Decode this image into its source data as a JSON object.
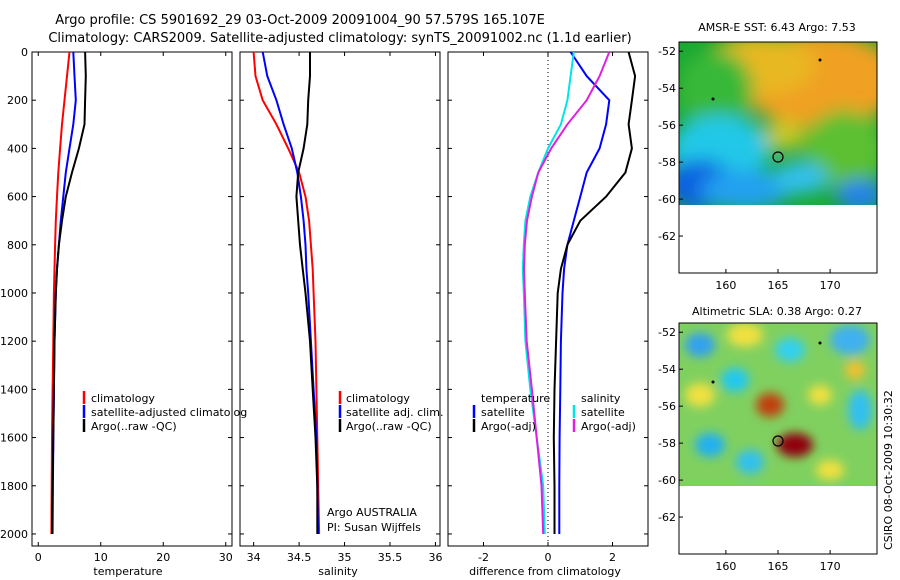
{
  "title_line1": "Argo profile: CS 5901692_29 03-Oct-2009 20091004_90 57.579S 165.107E",
  "title_line2": "Climatology: CARS2009. Satellite-adjusted climatology: synTS_20091002.nc (1.1d earlier)",
  "map1_title": "AMSR-E SST: 6.43 Argo: 7.53",
  "map2_title": "Altimetric SLA: 0.38 Argo: 0.27",
  "side_credit": "CSIRO 08-Oct-2009 10:30:32",
  "argo_info": [
    "Argo AUSTRALIA",
    "PI: Susan Wijffels"
  ],
  "colors": {
    "climatology": "#ff0000",
    "satellite": "#0000ff",
    "argo": "#000000",
    "sal_satellite": "#00e5e5",
    "sal_argo": "#e020e0"
  },
  "chart_data": [
    {
      "type": "line",
      "xlabel": "temperature",
      "xlim": [
        -1,
        31
      ],
      "ylim": [
        2050,
        0
      ],
      "xticks": [
        0,
        10,
        20,
        30
      ],
      "yticks": [
        0,
        200,
        400,
        600,
        800,
        1000,
        1200,
        1400,
        1600,
        1800,
        2000
      ],
      "legend": [
        "climatology",
        "satellite-adjusted climatolog",
        "Argo(..raw -QC)"
      ],
      "series": [
        {
          "name": "climatology",
          "color": "#ff0000",
          "x": [
            5.0,
            4.6,
            4.2,
            3.8,
            3.5,
            3.2,
            3.0,
            2.8,
            2.7,
            2.6,
            2.5,
            2.4,
            2.3,
            2.2,
            2.15,
            2.1
          ],
          "y": [
            0,
            100,
            200,
            300,
            400,
            500,
            600,
            700,
            800,
            900,
            1000,
            1200,
            1400,
            1600,
            1800,
            2000
          ]
        },
        {
          "name": "satellite-adjusted climatology",
          "color": "#0000ff",
          "x": [
            5.6,
            5.8,
            6.0,
            5.6,
            5.0,
            4.4,
            4.0,
            3.6,
            3.3,
            3.0,
            2.8,
            2.6,
            2.5,
            2.4,
            2.35,
            2.3
          ],
          "y": [
            0,
            100,
            200,
            300,
            400,
            500,
            600,
            700,
            800,
            900,
            1000,
            1200,
            1400,
            1600,
            1800,
            2000
          ]
        },
        {
          "name": "Argo(..raw -QC)",
          "color": "#000000",
          "x": [
            7.5,
            7.6,
            7.5,
            7.4,
            6.5,
            5.4,
            4.4,
            3.8,
            3.3,
            3.0,
            2.8,
            2.6,
            2.5,
            2.4,
            2.3,
            2.2
          ],
          "y": [
            0,
            100,
            200,
            300,
            400,
            500,
            600,
            700,
            800,
            900,
            1000,
            1200,
            1400,
            1600,
            1800,
            2000
          ]
        }
      ]
    },
    {
      "type": "line",
      "xlabel": "salinity",
      "xlim": [
        33.85,
        36.05
      ],
      "ylim": [
        2050,
        0
      ],
      "xticks": [
        34,
        34.5,
        35,
        35.5,
        36
      ],
      "legend": [
        "climatology",
        "satellite adj. clim.",
        "Argo(..raw -QC)"
      ],
      "series": [
        {
          "name": "climatology",
          "color": "#ff0000",
          "x": [
            34.0,
            34.02,
            34.1,
            34.25,
            34.38,
            34.5,
            34.57,
            34.61,
            34.63,
            34.65,
            34.66,
            34.68,
            34.69,
            34.7,
            34.71,
            34.72
          ],
          "y": [
            0,
            100,
            200,
            300,
            400,
            500,
            600,
            700,
            800,
            900,
            1000,
            1200,
            1400,
            1600,
            1800,
            2000
          ]
        },
        {
          "name": "satellite adj. clim.",
          "color": "#0000ff",
          "x": [
            34.1,
            34.15,
            34.25,
            34.33,
            34.42,
            34.48,
            34.52,
            34.55,
            34.57,
            34.58,
            34.6,
            34.63,
            34.66,
            34.69,
            34.7,
            34.71
          ],
          "y": [
            0,
            100,
            200,
            300,
            400,
            500,
            600,
            700,
            800,
            900,
            1000,
            1200,
            1400,
            1600,
            1800,
            2000
          ]
        },
        {
          "name": "Argo(..raw -QC)",
          "color": "#000000",
          "x": [
            34.62,
            34.62,
            34.6,
            34.59,
            34.55,
            34.49,
            34.47,
            34.49,
            34.51,
            34.54,
            34.57,
            34.62,
            34.65,
            34.68,
            34.7,
            34.7
          ],
          "y": [
            0,
            100,
            200,
            300,
            400,
            500,
            600,
            700,
            800,
            900,
            1000,
            1200,
            1400,
            1600,
            1800,
            2000
          ]
        }
      ]
    },
    {
      "type": "line",
      "xlabel": "difference from climatology",
      "xlim": [
        -3.1,
        3.1
      ],
      "ylim": [
        2050,
        0
      ],
      "xticks": [
        -2,
        0,
        2
      ],
      "legend": [
        "temperature",
        "satellite",
        "Argo(-adj)",
        "salinity",
        "satellite",
        "Argo(-adj)"
      ],
      "series": [
        {
          "name": "temperature satellite",
          "color": "#0000ff",
          "x": [
            0.7,
            1.2,
            1.9,
            1.8,
            1.6,
            1.2,
            1.0,
            0.8,
            0.6,
            0.5,
            0.45,
            0.4,
            0.38,
            0.36,
            0.35,
            0.35
          ],
          "y": [
            0,
            100,
            200,
            300,
            400,
            500,
            600,
            700,
            800,
            900,
            1000,
            1200,
            1400,
            1600,
            1800,
            2000
          ]
        },
        {
          "name": "temperature Argo(-adj)",
          "color": "#000000",
          "x": [
            2.5,
            2.7,
            2.6,
            2.5,
            2.6,
            2.4,
            1.8,
            1.0,
            0.6,
            0.4,
            0.3,
            0.25,
            0.2,
            0.18,
            0.2,
            0.2
          ],
          "y": [
            0,
            100,
            200,
            300,
            400,
            500,
            600,
            700,
            800,
            900,
            1000,
            1200,
            1400,
            1600,
            1800,
            2000
          ]
        },
        {
          "name": "salinity satellite",
          "color": "#00e5e5",
          "x": [
            0.8,
            0.7,
            0.6,
            0.4,
            0.0,
            -0.3,
            -0.55,
            -0.7,
            -0.75,
            -0.78,
            -0.75,
            -0.7,
            -0.55,
            -0.35,
            -0.15,
            -0.1
          ],
          "y": [
            0,
            100,
            200,
            300,
            400,
            500,
            600,
            700,
            800,
            900,
            1000,
            1200,
            1400,
            1600,
            1800,
            2000
          ]
        },
        {
          "name": "salinity Argo(-adj)",
          "color": "#e020e0",
          "x": [
            1.9,
            1.6,
            1.2,
            0.6,
            0.1,
            -0.3,
            -0.5,
            -0.65,
            -0.72,
            -0.74,
            -0.72,
            -0.66,
            -0.5,
            -0.35,
            -0.2,
            -0.15
          ],
          "y": [
            0,
            100,
            200,
            300,
            400,
            500,
            600,
            700,
            800,
            900,
            1000,
            1200,
            1400,
            1600,
            1800,
            2000
          ]
        }
      ]
    },
    {
      "type": "heatmap",
      "title": "AMSR-E SST: 6.43 Argo: 7.53",
      "xlim": [
        155.5,
        174.5
      ],
      "ylim": [
        -64,
        -51.5
      ],
      "xticks": [
        160,
        165,
        170
      ],
      "yticks": [
        -52,
        -54,
        -56,
        -58,
        -60,
        -62
      ],
      "marker": {
        "lon": 165.1,
        "lat": -57.6
      }
    },
    {
      "type": "heatmap",
      "title": "Altimetric SLA: 0.38 Argo: 0.27",
      "xlim": [
        155.5,
        174.5
      ],
      "ylim": [
        -64,
        -51.5
      ],
      "xticks": [
        160,
        165,
        170
      ],
      "yticks": [
        -52,
        -54,
        -56,
        -58,
        -60,
        -62
      ],
      "marker": {
        "lon": 165.1,
        "lat": -57.6
      }
    }
  ]
}
